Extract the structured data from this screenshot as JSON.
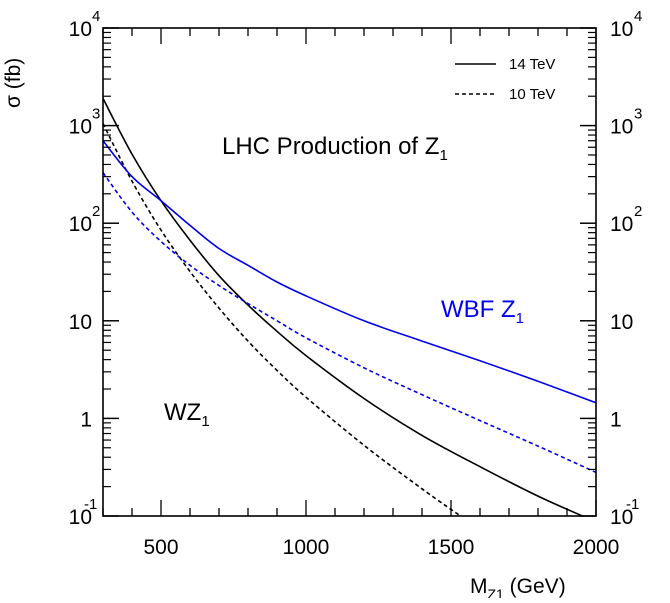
{
  "chart_data": {
    "type": "line",
    "title": "",
    "xlabel": "M",
    "xlabel_sub": "Z1",
    "xlabel_unit": " (GeV)",
    "ylabel": "σ (fb)",
    "xlim": [
      300,
      2000
    ],
    "ylim": [
      0.1,
      10000
    ],
    "y_scale": "log",
    "grid": false,
    "legend_position": "top-right",
    "x_ticks": [
      {
        "value": 500,
        "label": "500"
      },
      {
        "value": 1000,
        "label": "1000"
      },
      {
        "value": 1500,
        "label": "1500"
      },
      {
        "value": 2000,
        "label": "2000"
      }
    ],
    "y_ticks": [
      {
        "value": 0.1,
        "base": "10",
        "exp": "-1"
      },
      {
        "value": 1,
        "base": "1",
        "exp": ""
      },
      {
        "value": 10,
        "base": "10",
        "exp": ""
      },
      {
        "value": 100,
        "base": "10",
        "exp": "2"
      },
      {
        "value": 1000,
        "base": "10",
        "exp": "3"
      },
      {
        "value": 10000,
        "base": "10",
        "exp": "4"
      }
    ],
    "legend": [
      {
        "label": "14 TeV",
        "style": "solid"
      },
      {
        "label": "10 TeV",
        "style": "dashed"
      }
    ],
    "annotations": {
      "production": {
        "text": "LHC Production of Z",
        "sub": "1",
        "color": "#000000"
      },
      "wbf": {
        "text": "WBF Z",
        "sub": "1",
        "color": "#0000ee"
      },
      "wz": {
        "text": "WZ",
        "sub": "1",
        "color": "#000000"
      }
    },
    "series": [
      {
        "process": "WZ1",
        "energy": "14 TeV",
        "color": "#000000",
        "style": "solid",
        "x": [
          300,
          400,
          500,
          600,
          700,
          800,
          900,
          1000,
          1200,
          1400,
          1600,
          1800,
          2000
        ],
        "y": [
          1900,
          510,
          170,
          67,
          29,
          14.5,
          7.8,
          4.4,
          1.6,
          0.67,
          0.32,
          0.16,
          0.087
        ]
      },
      {
        "process": "WZ1",
        "energy": "10 TeV",
        "color": "#000000",
        "style": "dashed",
        "x": [
          300,
          400,
          500,
          600,
          700,
          800,
          900,
          1000,
          1200,
          1400,
          1550
        ],
        "y": [
          1050,
          270,
          85,
          32,
          13.5,
          6.2,
          3.1,
          1.65,
          0.53,
          0.19,
          0.092
        ]
      },
      {
        "process": "WBF Z1",
        "energy": "14 TeV",
        "color": "#0000ee",
        "style": "solid",
        "x": [
          300,
          400,
          500,
          600,
          700,
          800,
          900,
          1000,
          1200,
          1400,
          1600,
          1800,
          2000
        ],
        "y": [
          700,
          300,
          170,
          95,
          55,
          37,
          25,
          18,
          10,
          6.2,
          3.9,
          2.4,
          1.45
        ]
      },
      {
        "process": "WBF Z1",
        "energy": "10 TeV",
        "color": "#0000ee",
        "style": "dashed",
        "x": [
          300,
          400,
          500,
          600,
          700,
          800,
          900,
          1000,
          1200,
          1400,
          1600,
          1800,
          2000
        ],
        "y": [
          330,
          130,
          65,
          37,
          23,
          15,
          10,
          6.7,
          3.3,
          1.75,
          0.95,
          0.52,
          0.28
        ]
      }
    ]
  }
}
